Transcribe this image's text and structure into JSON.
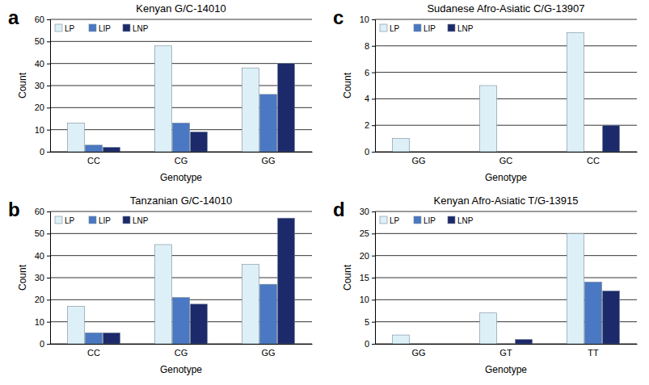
{
  "chart_data": [
    {
      "type": "bar",
      "title": "Kenyan G/C-14010",
      "annotations": [
        "a"
      ],
      "x_label": "Genotype",
      "y_label": "Count",
      "categories": [
        "CC",
        "CG",
        "GG"
      ],
      "series": [
        {
          "name": "LP",
          "color": "#ddf0f8",
          "values": [
            13,
            48,
            38
          ]
        },
        {
          "name": "LIP",
          "color": "#4a78c2",
          "values": [
            3,
            13,
            26
          ]
        },
        {
          "name": "LNP",
          "color": "#1c2a6b",
          "values": [
            2,
            9,
            40
          ]
        }
      ],
      "ylim": [
        0,
        60
      ],
      "yticks": [
        0,
        10,
        20,
        30,
        40,
        50,
        60
      ],
      "grid": true,
      "legend": "upper-left"
    },
    {
      "type": "bar",
      "title": "Tanzanian G/C-14010",
      "annotations": [
        "b"
      ],
      "x_label": "Genotype",
      "y_label": "Count",
      "categories": [
        "CC",
        "CG",
        "GG"
      ],
      "series": [
        {
          "name": "LP",
          "color": "#ddf0f8",
          "values": [
            17,
            45,
            36
          ]
        },
        {
          "name": "LIP",
          "color": "#4a78c2",
          "values": [
            5,
            21,
            27
          ]
        },
        {
          "name": "LNP",
          "color": "#1c2a6b",
          "values": [
            5,
            18,
            57
          ]
        }
      ],
      "ylim": [
        0,
        60
      ],
      "yticks": [
        0,
        10,
        20,
        30,
        40,
        50,
        60
      ],
      "grid": true,
      "legend": "upper-left"
    },
    {
      "type": "bar",
      "title": "Sudanese Afro-Asiatic C/G-13907",
      "annotations": [
        "c"
      ],
      "x_label": "Genotype",
      "y_label": "Count",
      "categories": [
        "GG",
        "GC",
        "CC"
      ],
      "series": [
        {
          "name": "LP",
          "color": "#ddf0f8",
          "values": [
            1,
            5,
            9
          ]
        },
        {
          "name": "LIP",
          "color": "#4a78c2",
          "values": [
            0,
            0,
            0
          ]
        },
        {
          "name": "LNP",
          "color": "#1c2a6b",
          "values": [
            0,
            0,
            2
          ]
        }
      ],
      "ylim": [
        0,
        10
      ],
      "yticks": [
        0,
        2,
        4,
        6,
        8,
        10
      ],
      "grid": true,
      "legend": "upper-left"
    },
    {
      "type": "bar",
      "title": "Kenyan Afro-Asiatic T/G-13915",
      "annotations": [
        "d"
      ],
      "x_label": "Genotype",
      "y_label": "Count",
      "categories": [
        "GG",
        "GT",
        "TT"
      ],
      "series": [
        {
          "name": "LP",
          "color": "#ddf0f8",
          "values": [
            2,
            7,
            25
          ]
        },
        {
          "name": "LIP",
          "color": "#4a78c2",
          "values": [
            0,
            0,
            14
          ]
        },
        {
          "name": "LNP",
          "color": "#1c2a6b",
          "values": [
            0,
            1,
            12
          ]
        }
      ],
      "ylim": [
        0,
        30
      ],
      "yticks": [
        0,
        5,
        10,
        15,
        20,
        25,
        30
      ],
      "grid": true,
      "legend": "upper-left"
    }
  ]
}
